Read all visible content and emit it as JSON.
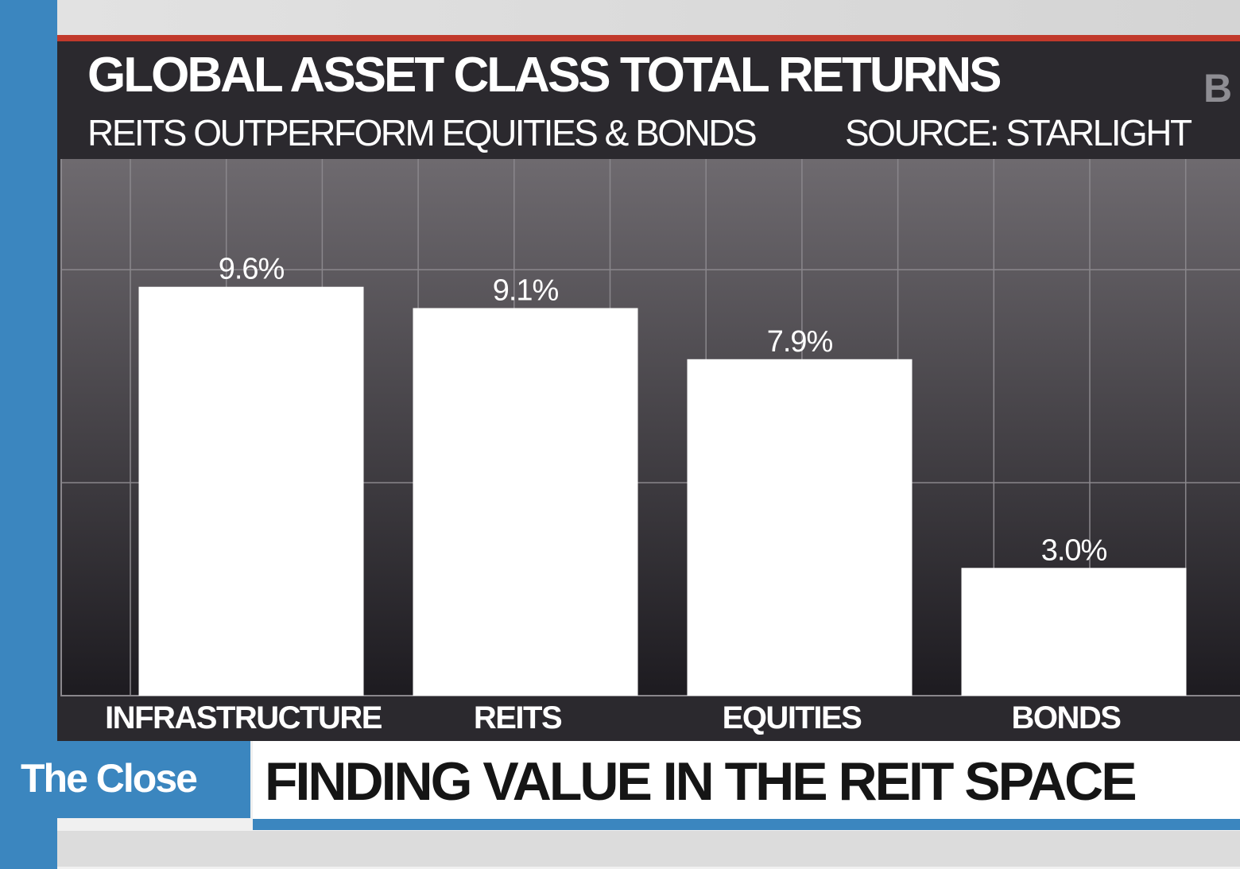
{
  "chart_data": {
    "type": "bar",
    "title": "GLOBAL ASSET CLASS TOTAL RETURNS",
    "subtitle": "REITS OUTPERFORM EQUITIES & BONDS",
    "source": "SOURCE: STARLIGHT",
    "categories": [
      "INFRASTRUCTURE",
      "REITS",
      "EQUITIES",
      "BONDS"
    ],
    "values": [
      9.6,
      9.1,
      7.9,
      3.0
    ],
    "value_labels": [
      "9.6%",
      "9.1%",
      "7.9%",
      "3.0%"
    ],
    "color": "#ffffff",
    "ylim": [
      0,
      12.6
    ],
    "yticks": [
      5,
      10
    ],
    "grid": true
  },
  "logo": "B",
  "lower_third": {
    "show": "The Close",
    "headline": "FINDING VALUE IN THE REIT SPACE"
  }
}
